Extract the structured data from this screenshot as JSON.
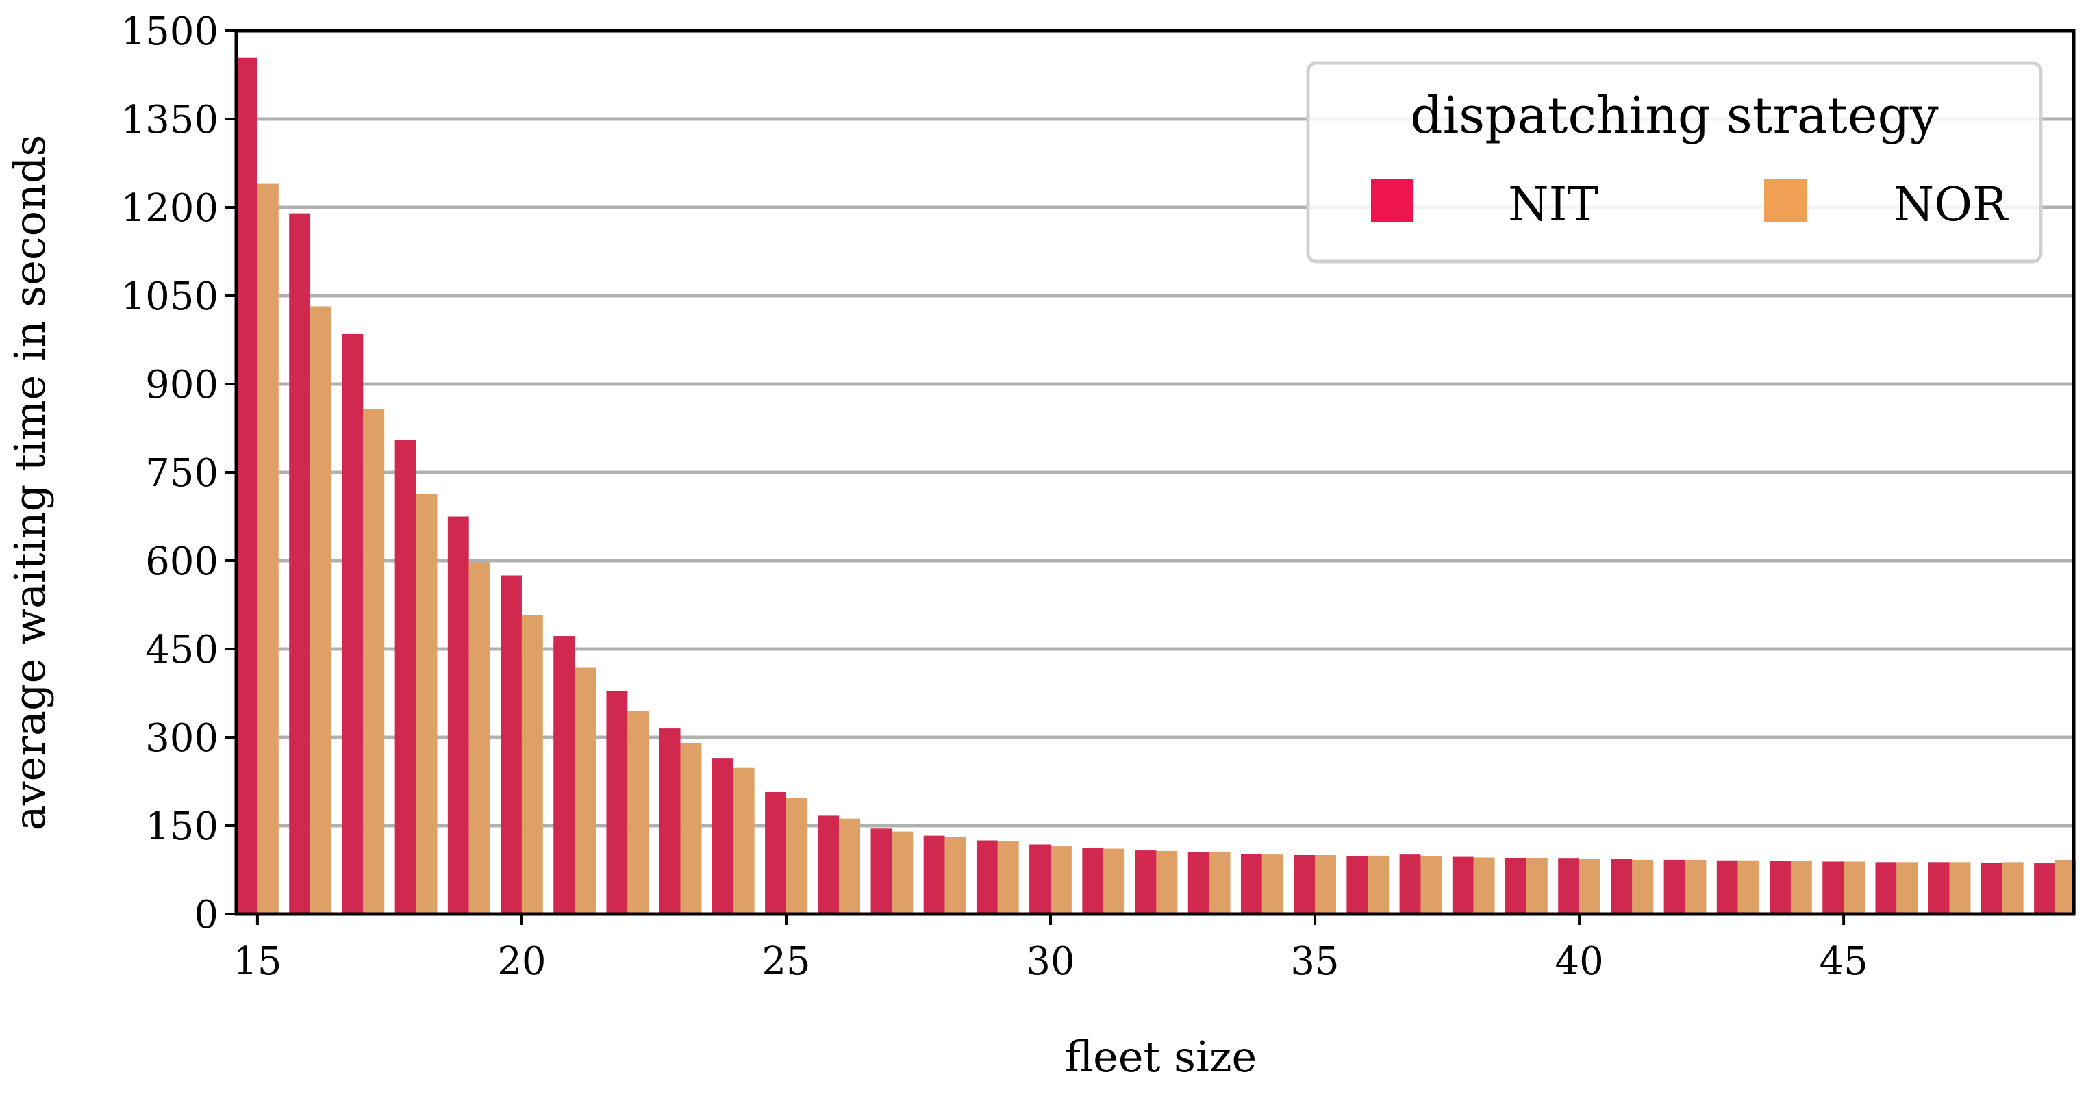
{
  "chart_data": {
    "type": "bar",
    "xlabel": "fleet size",
    "ylabel": "average waiting time in seconds",
    "ylim": [
      0,
      1500
    ],
    "yticks": [
      0,
      150,
      300,
      450,
      600,
      750,
      900,
      1050,
      1200,
      1350,
      1500
    ],
    "xtick_labels": [
      "15",
      "20",
      "25",
      "30",
      "35",
      "40",
      "45"
    ],
    "categories": [
      15,
      16,
      17,
      18,
      19,
      20,
      21,
      22,
      23,
      24,
      25,
      26,
      27,
      28,
      29,
      30,
      31,
      32,
      33,
      34,
      35,
      36,
      37,
      38,
      39,
      40,
      41,
      42,
      43,
      44,
      45,
      46,
      47,
      48,
      49
    ],
    "grid": "horizontal",
    "legend": {
      "title": "dispatching strategy",
      "placement": "top-right"
    },
    "series": [
      {
        "name": "NIT",
        "color": "#d0284f",
        "legend_color": "#ee1450",
        "values": [
          1455,
          1190,
          985,
          805,
          675,
          575,
          472,
          378,
          315,
          265,
          207,
          167,
          145,
          133,
          125,
          118,
          112,
          108,
          105,
          102,
          100,
          98,
          101,
          97,
          95,
          94,
          93,
          92,
          91,
          90,
          89,
          88,
          88,
          87,
          86
        ]
      },
      {
        "name": "NOR",
        "color": "#dfa065",
        "legend_color": "#f0a054",
        "values": [
          1240,
          1032,
          858,
          713,
          597,
          508,
          418,
          345,
          290,
          248,
          197,
          162,
          140,
          131,
          124,
          115,
          111,
          107,
          106,
          101,
          100,
          99,
          98,
          96,
          95,
          93,
          92,
          92,
          91,
          90,
          89,
          88,
          88,
          88,
          92
        ]
      }
    ]
  }
}
